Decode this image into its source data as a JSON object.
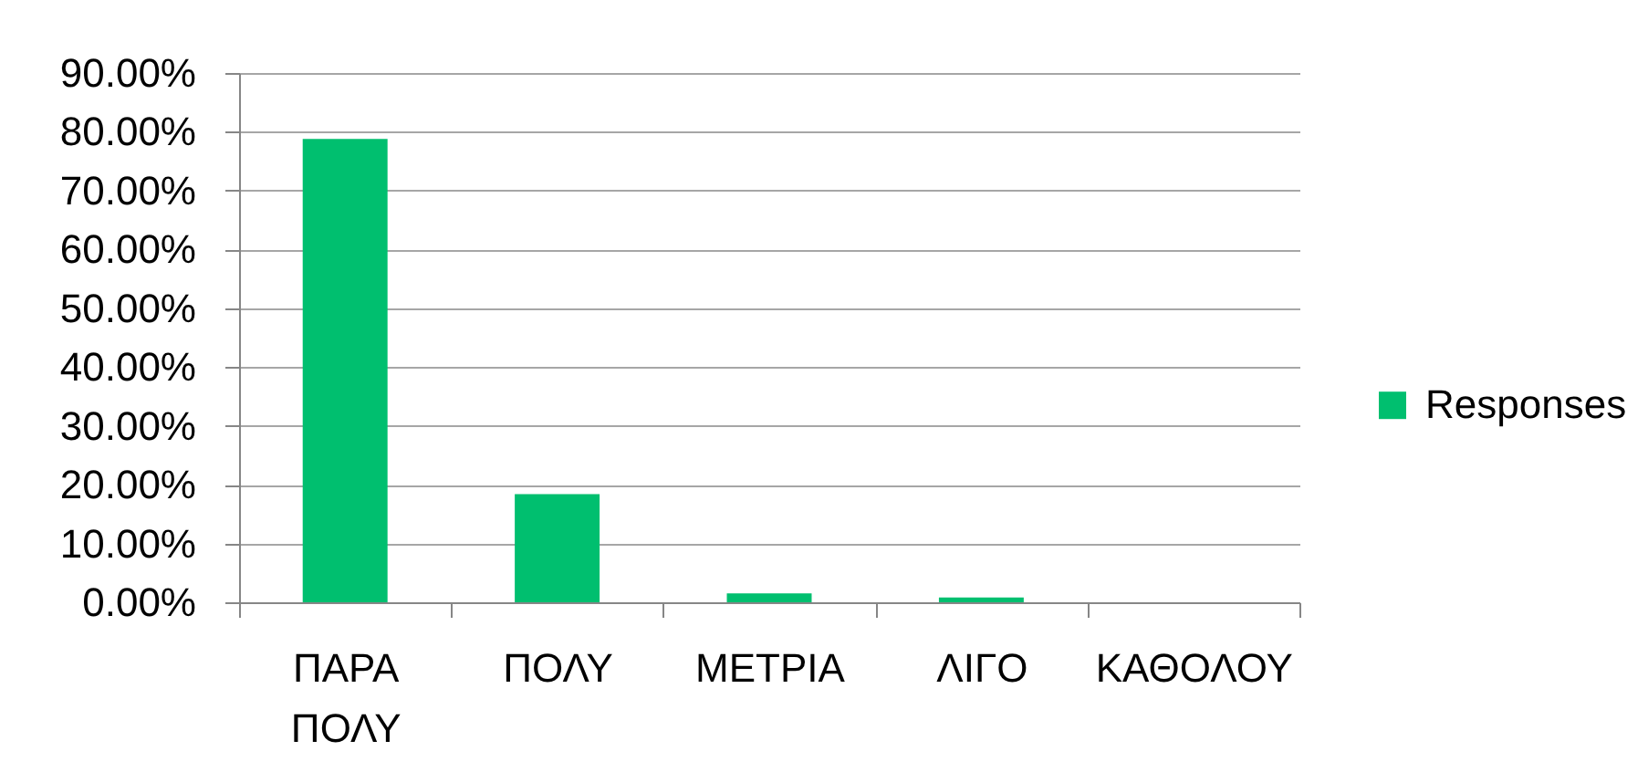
{
  "chart_data": {
    "type": "bar",
    "categories": [
      "ΠΑΡΑ ΠΟΛΥ",
      "ΠΟΛΥ",
      "ΜΕΤΡΙΑ",
      "ΛΙΓΟ",
      "ΚΑΘΟΛΟΥ"
    ],
    "series": [
      {
        "name": "Responses",
        "color": "#00bf6f",
        "values": [
          78.8,
          18.4,
          1.5,
          0.8,
          0
        ]
      }
    ],
    "ylim": [
      0,
      90
    ],
    "yticks": [
      {
        "value": 0,
        "label": "0.00%"
      },
      {
        "value": 10,
        "label": "10.00%"
      },
      {
        "value": 20,
        "label": "20.00%"
      },
      {
        "value": 30,
        "label": "30.00%"
      },
      {
        "value": 40,
        "label": "40.00%"
      },
      {
        "value": 50,
        "label": "50.00%"
      },
      {
        "value": 60,
        "label": "60.00%"
      },
      {
        "value": 70,
        "label": "70.00%"
      },
      {
        "value": 80,
        "label": "80.00%"
      },
      {
        "value": 90,
        "label": "90.00%"
      }
    ],
    "grid": "y",
    "legend": "right"
  }
}
